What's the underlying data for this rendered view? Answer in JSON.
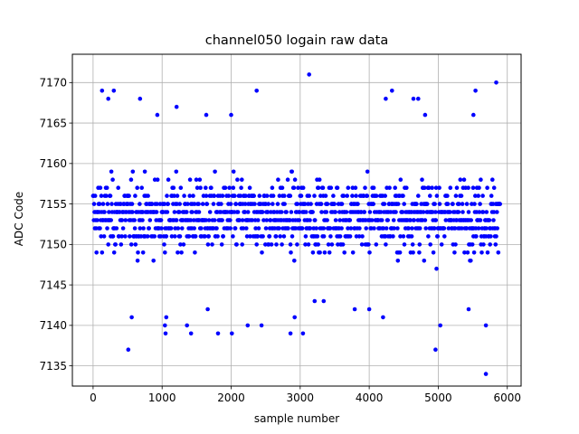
{
  "chart_data": {
    "type": "scatter",
    "title": "channel050 logain raw data",
    "xlabel": "sample number",
    "ylabel": "ADC Code",
    "xlim": [
      -300,
      6200
    ],
    "ylim": [
      7132.5,
      7173.5
    ],
    "xticks": [
      0,
      1000,
      2000,
      3000,
      4000,
      5000,
      6000
    ],
    "yticks": [
      7135,
      7140,
      7145,
      7150,
      7155,
      7160,
      7165,
      7170
    ],
    "grid": true,
    "marker_color": "#0000ff",
    "sample_count": 5900,
    "band": {
      "min": 7144,
      "max": 7162
    },
    "outliers": [
      {
        "x": 130,
        "y": 7169
      },
      {
        "x": 300,
        "y": 7169
      },
      {
        "x": 220,
        "y": 7168
      },
      {
        "x": 680,
        "y": 7168
      },
      {
        "x": 1210,
        "y": 7167
      },
      {
        "x": 2370,
        "y": 7169
      },
      {
        "x": 3130,
        "y": 7171
      },
      {
        "x": 4330,
        "y": 7169
      },
      {
        "x": 4240,
        "y": 7168
      },
      {
        "x": 4640,
        "y": 7168
      },
      {
        "x": 4710,
        "y": 7168
      },
      {
        "x": 5540,
        "y": 7169
      },
      {
        "x": 5840,
        "y": 7170
      },
      {
        "x": 2000,
        "y": 7166
      },
      {
        "x": 1640,
        "y": 7166
      },
      {
        "x": 4810,
        "y": 7166
      },
      {
        "x": 5510,
        "y": 7166
      },
      {
        "x": 930,
        "y": 7166
      },
      {
        "x": 1060,
        "y": 7141
      },
      {
        "x": 1040,
        "y": 7140
      },
      {
        "x": 1050,
        "y": 7139
      },
      {
        "x": 1360,
        "y": 7140
      },
      {
        "x": 1420,
        "y": 7139
      },
      {
        "x": 1810,
        "y": 7139
      },
      {
        "x": 2010,
        "y": 7139
      },
      {
        "x": 2240,
        "y": 7140
      },
      {
        "x": 2440,
        "y": 7140
      },
      {
        "x": 2860,
        "y": 7139
      },
      {
        "x": 3040,
        "y": 7139
      },
      {
        "x": 2920,
        "y": 7141
      },
      {
        "x": 4000,
        "y": 7142
      },
      {
        "x": 4200,
        "y": 7141
      },
      {
        "x": 4960,
        "y": 7137
      },
      {
        "x": 5030,
        "y": 7140
      },
      {
        "x": 5690,
        "y": 7140
      },
      {
        "x": 5690,
        "y": 7134
      },
      {
        "x": 510,
        "y": 7137
      },
      {
        "x": 560,
        "y": 7141
      },
      {
        "x": 1660,
        "y": 7142
      },
      {
        "x": 3790,
        "y": 7142
      },
      {
        "x": 5440,
        "y": 7142
      },
      {
        "x": 3210,
        "y": 7143
      },
      {
        "x": 3340,
        "y": 7143
      }
    ]
  }
}
